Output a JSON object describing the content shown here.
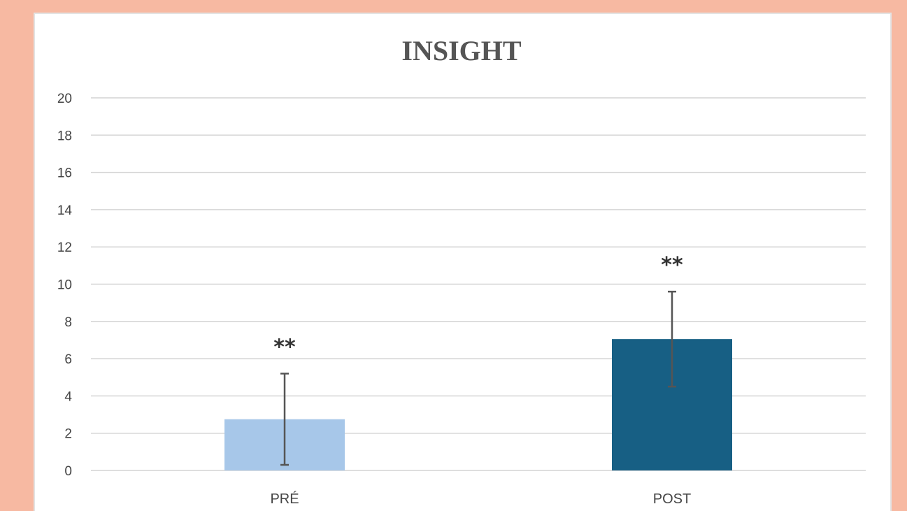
{
  "chart_data": {
    "type": "bar",
    "title": "INSIGHT",
    "xlabel": "",
    "ylabel": "",
    "categories": [
      "PRÉ",
      "POST"
    ],
    "values": [
      2.75,
      7.05
    ],
    "error_low": [
      0.3,
      4.5
    ],
    "error_high": [
      5.2,
      9.6
    ],
    "annotations": [
      "**",
      "**"
    ],
    "colors": [
      "#a7c7e9",
      "#175f84"
    ],
    "ylim": [
      0,
      20
    ],
    "yticks": [
      0,
      2,
      4,
      6,
      8,
      10,
      12,
      14,
      16,
      18,
      20
    ],
    "grid": true,
    "legend": "none"
  },
  "colors": {
    "background": "#f7b9a2",
    "panel": "#ffffff"
  }
}
